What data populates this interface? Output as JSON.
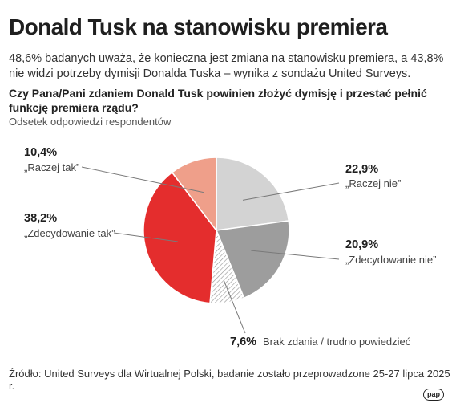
{
  "header": {
    "title": "Donald Tusk na stanowisku premiera",
    "subtitle": "48,6% badanych uważa, że konieczna jest zmiana na stanowisku premiera, a 43,8% nie widzi potrzeby dymisji Donalda Tuska – wynika z sondażu United Surveys.",
    "question": "Czy Pana/Pani zdaniem Donald Tusk powinien złożyć dymisję i przestać pełnić funkcję premiera rządu?",
    "note": "Odsetek odpowiedzi respondentów"
  },
  "chart_data": {
    "type": "pie",
    "title": "Czy Pana/Pani zdaniem Donald Tusk powinien złożyć dymisję i przestać pełnić funkcję premiera rządu?",
    "unit": "%",
    "slices": [
      {
        "label": "„Raczej nie”",
        "value": 22.9,
        "value_label": "22,9%",
        "color": "#d3d3d3"
      },
      {
        "label": "„Zdecydowanie nie”",
        "value": 20.9,
        "value_label": "20,9%",
        "color": "#9d9d9d"
      },
      {
        "label": "Brak zdania / trudno powiedzieć",
        "value": 7.6,
        "value_label": "7,6%",
        "color": "hatched"
      },
      {
        "label": "„Zdecydowanie tak”",
        "value": 38.2,
        "value_label": "38,2%",
        "color": "#e42d2d"
      },
      {
        "label": "„Raczej tak”",
        "value": 10.4,
        "value_label": "10,4%",
        "color": "#ef9f8a"
      }
    ]
  },
  "footer": {
    "source": "Źródło: United Surveys dla Wirtualnej Polski, badanie zostało przeprowadzone 25-27 lipca 2025 r.",
    "logo": "pap"
  }
}
